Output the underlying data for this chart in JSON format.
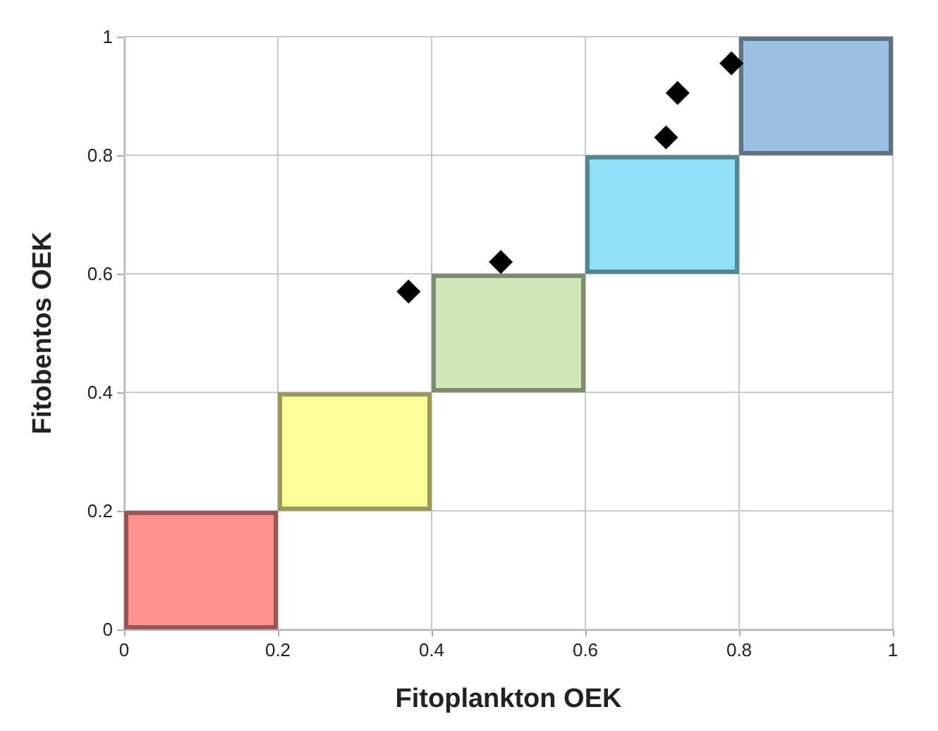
{
  "chart_data": {
    "type": "scatter",
    "xlabel": "Fitoplankton OEK",
    "ylabel": "Fitobentos OEK",
    "xlim": [
      0,
      1
    ],
    "ylim": [
      0,
      1
    ],
    "xticks": [
      0,
      0.2,
      0.4,
      0.6,
      0.8,
      1
    ],
    "yticks": [
      0,
      0.2,
      0.4,
      0.6,
      0.8,
      1
    ],
    "grid": true,
    "series": [
      {
        "type": "bar",
        "x": [
          0.1,
          0.3,
          0.5,
          0.7,
          0.9
        ],
        "values": [
          0.2,
          0.2,
          0.2,
          0.2,
          0.2
        ],
        "base": [
          0,
          0.2,
          0.4,
          0.6,
          0.8
        ],
        "colors": [
          "#ff9090",
          "#ffff99",
          "#d0e8b8",
          "#90e0f8",
          "#9cc0e0"
        ]
      },
      {
        "x": [
          0.37,
          0.49,
          0.705,
          0.72,
          0.79
        ],
        "values": [
          0.57,
          0.62,
          0.83,
          0.905,
          0.955
        ],
        "color": "#000000",
        "marker": "diamond"
      }
    ]
  }
}
